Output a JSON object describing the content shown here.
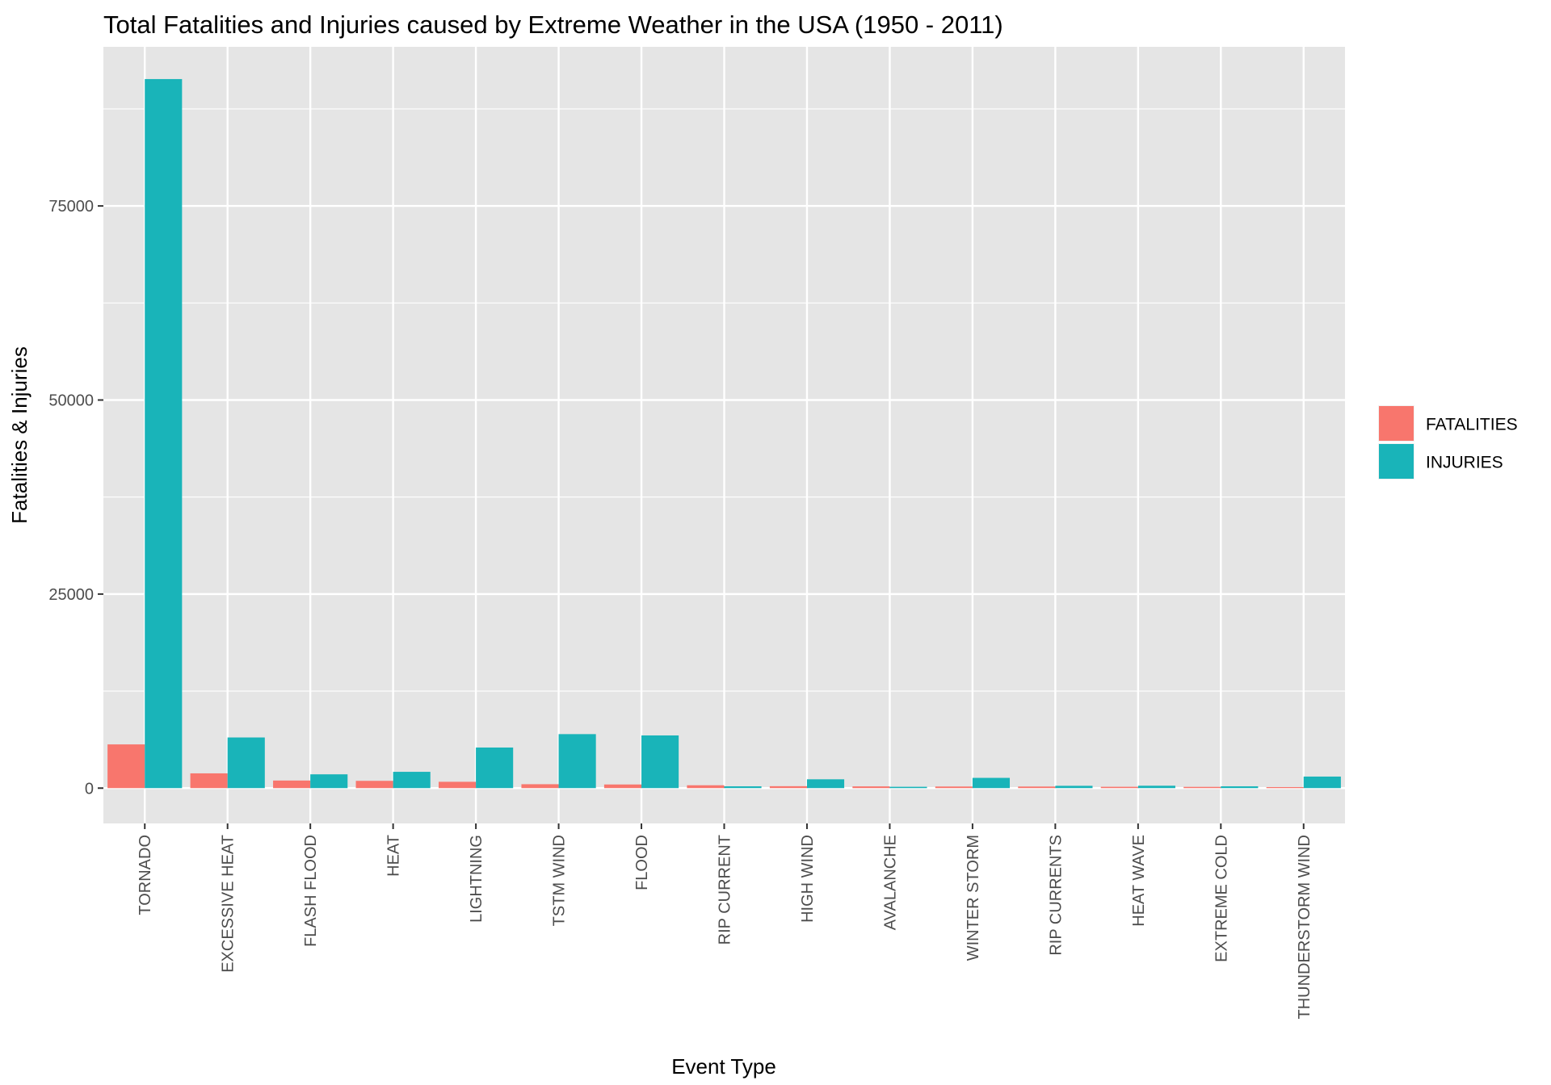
{
  "chart_data": {
    "type": "bar",
    "title": "Total Fatalities and Injuries caused by Extreme Weather in the USA (1950 - 2011)",
    "xlabel": "Event Type",
    "ylabel": "Fatalities & Injuries",
    "ylim": [
      -4550,
      95500
    ],
    "yticks": [
      0,
      25000,
      50000,
      75000
    ],
    "ytick_labels": [
      "0",
      "25000",
      "50000",
      "75000"
    ],
    "grid": true,
    "legend_position": "right",
    "background_color": "#e5e5e5",
    "grid_color": "#ffffff",
    "categories": [
      "TORNADO",
      "EXCESSIVE HEAT",
      "FLASH FLOOD",
      "HEAT",
      "LIGHTNING",
      "TSTM WIND",
      "FLOOD",
      "RIP CURRENT",
      "HIGH WIND",
      "AVALANCHE",
      "WINTER STORM",
      "RIP CURRENTS",
      "HEAT WAVE",
      "EXTREME COLD",
      "THUNDERSTORM WIND"
    ],
    "series": [
      {
        "name": "FATALITIES",
        "color": "#f8766d",
        "values": [
          5633,
          1903,
          978,
          937,
          816,
          504,
          470,
          368,
          248,
          224,
          206,
          204,
          172,
          160,
          133
        ]
      },
      {
        "name": "INJURIES",
        "color": "#19b4b9",
        "values": [
          91346,
          6525,
          1777,
          2100,
          5230,
          6957,
          6789,
          232,
          1137,
          170,
          1321,
          297,
          309,
          231,
          1488
        ]
      }
    ]
  }
}
